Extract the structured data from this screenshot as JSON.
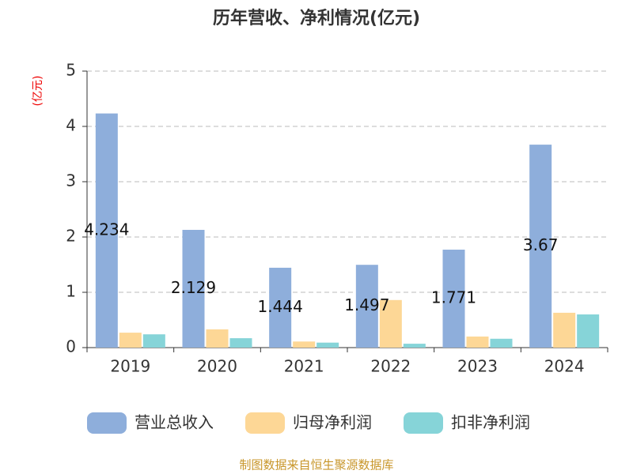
{
  "chart_data": {
    "type": "bar",
    "title": "历年营收、净利情况(亿元)",
    "y_label": "(亿元)",
    "categories": [
      "2019",
      "2020",
      "2021",
      "2022",
      "2023",
      "2024"
    ],
    "series": [
      {
        "name": "营业总收入",
        "color": "#8eaedb",
        "values": [
          4.234,
          2.129,
          1.444,
          1.497,
          1.771,
          3.67
        ],
        "show_labels": true
      },
      {
        "name": "归母净利润",
        "color": "#fdd796",
        "values": [
          0.27,
          0.33,
          0.11,
          0.86,
          0.2,
          0.63
        ]
      },
      {
        "name": "扣非净利润",
        "color": "#86d4d8",
        "values": [
          0.24,
          0.17,
          0.09,
          0.07,
          0.16,
          0.6
        ]
      }
    ],
    "ylim": [
      0,
      5
    ],
    "yticks": [
      0,
      1,
      2,
      3,
      4,
      5
    ],
    "grid": true,
    "source": "制图数据来自恒生聚源数据库"
  }
}
